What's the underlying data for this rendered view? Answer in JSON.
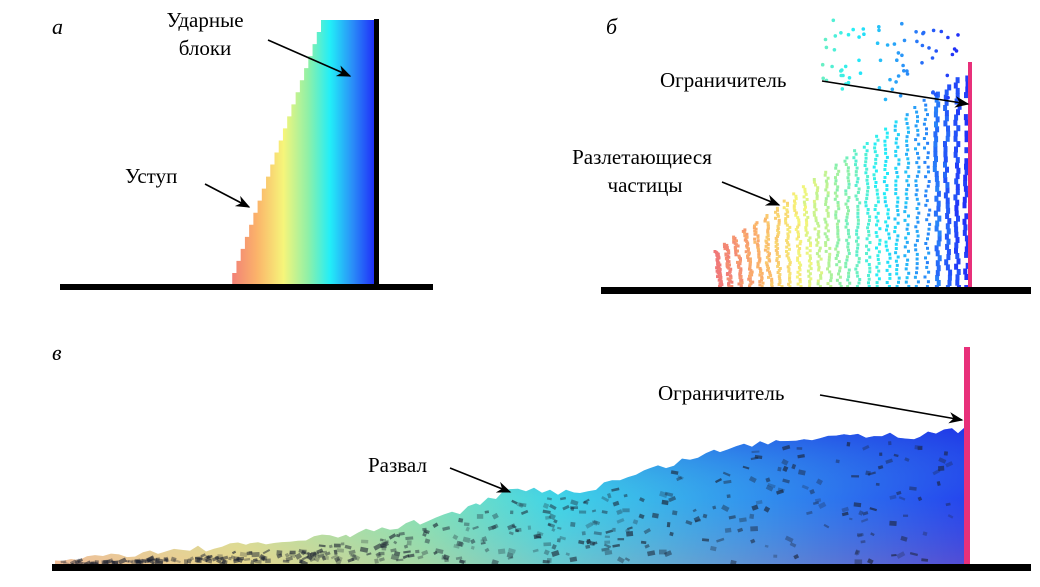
{
  "panels": {
    "a": {
      "letter": "а",
      "label_blocks_1": "Ударные",
      "label_blocks_2": "блоки",
      "label_ledge": "Уступ"
    },
    "b": {
      "letter": "б",
      "label_limiter": "Ограничитель",
      "label_particles_1": "Разлетающиеся",
      "label_particles_2": "частицы"
    },
    "c": {
      "letter": "в",
      "label_limiter": "Ограничитель",
      "label_pile": "Развал"
    }
  },
  "colors": {
    "limiter": "#e8307a",
    "ground": "#000000",
    "warm": "#f08080",
    "cool": "#2030ff"
  }
}
